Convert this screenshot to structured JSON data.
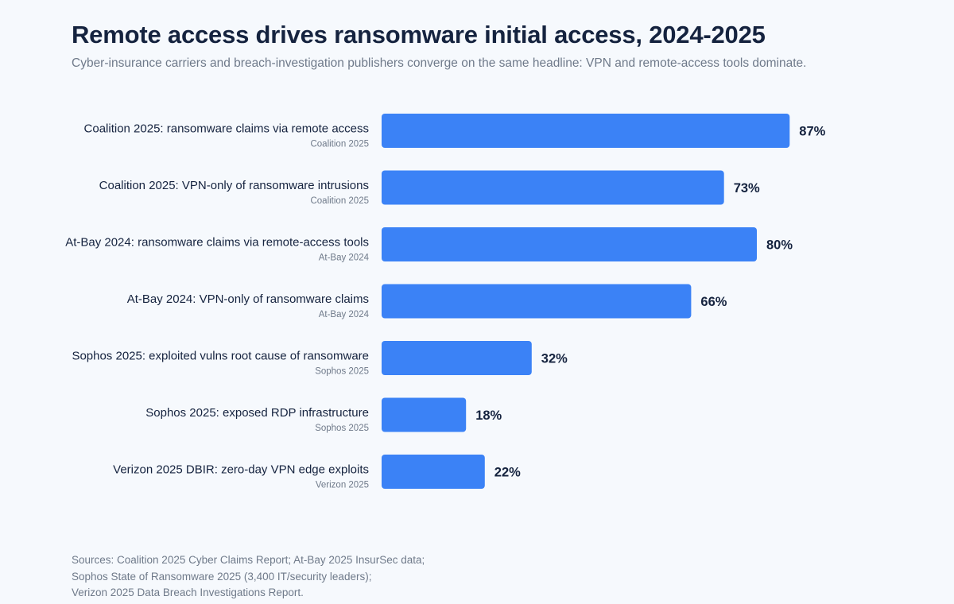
{
  "header": {
    "title": "Remote access drives ransomware initial access, 2024-2025",
    "subtitle": "Cyber-insurance carriers and breach-investigation publishers converge on the same headline: VPN and remote-access tools dominate."
  },
  "chart_data": {
    "type": "bar",
    "orientation": "horizontal",
    "categories": [
      "Coalition 2025: ransomware claims via remote access",
      "Coalition 2025: VPN-only of ransomware intrusions",
      "At-Bay 2024: ransomware claims via remote-access tools",
      "At-Bay 2024: VPN-only of ransomware claims",
      "Sophos 2025: exploited vulns root cause of ransomware",
      "Sophos 2025: exposed RDP infrastructure",
      "Verizon 2025 DBIR: zero-day VPN edge exploits"
    ],
    "sources": [
      "Coalition 2025",
      "Coalition 2025",
      "At-Bay 2024",
      "At-Bay 2024",
      "Sophos 2025",
      "Sophos 2025",
      "Verizon 2025"
    ],
    "values": [
      87,
      73,
      80,
      66,
      32,
      18,
      22
    ],
    "value_labels": [
      "87%",
      "73%",
      "80%",
      "66%",
      "32%",
      "18%",
      "22%"
    ],
    "unit": "%",
    "xlim": [
      0,
      100
    ],
    "grid": false,
    "legend": "none",
    "bar_color": "#3b82f6"
  },
  "footer": {
    "sources": [
      "Sources: Coalition 2025 Cyber Claims Report; At-Bay 2025 InsurSec data;",
      "Sophos State of Ransomware 2025 (3,400 IT/security leaders);",
      "Verizon 2025 Data Breach Investigations Report."
    ]
  }
}
